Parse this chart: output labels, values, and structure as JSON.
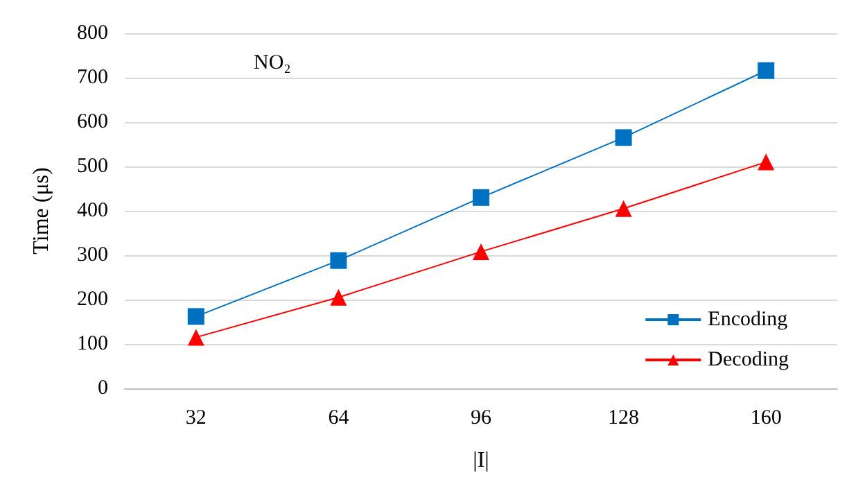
{
  "chart_data": {
    "type": "line",
    "xlabel": "|I|",
    "ylabel": "Time (μs)",
    "annotations": [
      "NO₂"
    ],
    "categories": [
      "32",
      "64",
      "96",
      "128",
      "160"
    ],
    "series": [
      {
        "name": "Encoding",
        "color": "#0070c0",
        "marker": "square",
        "values": [
          162,
          288,
          430,
          565,
          716
        ]
      },
      {
        "name": "Decoding",
        "color": "#ff0000",
        "marker": "triangle",
        "values": [
          115,
          205,
          308,
          405,
          510
        ]
      }
    ],
    "ylim": [
      0,
      800
    ],
    "yticks": [
      0,
      100,
      200,
      300,
      400,
      500,
      600,
      700,
      800
    ],
    "grid": "y",
    "legend": "bottom right",
    "line_style": "solid"
  }
}
